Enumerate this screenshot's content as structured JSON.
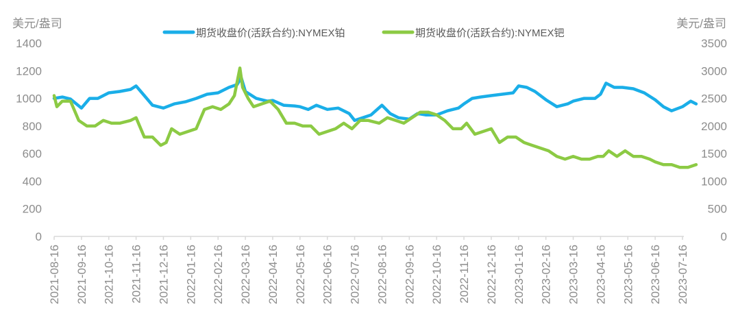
{
  "chart_data": {
    "type": "line",
    "left_unit": "美元/盎司",
    "right_unit": "美元/盎司",
    "left_ylim": [
      0,
      1400
    ],
    "right_ylim": [
      0,
      3500
    ],
    "left_ticks": [
      "0",
      "200",
      "400",
      "600",
      "800",
      "1000",
      "1200",
      "1400"
    ],
    "right_ticks": [
      "0",
      "500",
      "1000",
      "1500",
      "2000",
      "2500",
      "3000",
      "3500"
    ],
    "x_ticks": [
      "2021-08-16",
      "2021-09-16",
      "2021-10-16",
      "2021-11-16",
      "2021-12-16",
      "2022-01-16",
      "2022-02-16",
      "2022-03-16",
      "2022-04-16",
      "2022-05-16",
      "2022-06-16",
      "2022-07-16",
      "2022-08-16",
      "2022-09-16",
      "2022-10-16",
      "2022-11-16",
      "2022-12-16",
      "2023-01-16",
      "2023-02-16",
      "2023-03-16",
      "2023-04-16",
      "2023-05-16",
      "2023-06-16",
      "2023-07-16"
    ],
    "series": [
      {
        "name": "期货收盘价(活跃合约):NYMEX铂",
        "axis": "left",
        "color": "#1aaee8",
        "values": [
          [
            0,
            1000
          ],
          [
            0.3,
            1010
          ],
          [
            0.6,
            995
          ],
          [
            1.0,
            930
          ],
          [
            1.3,
            1000
          ],
          [
            1.6,
            1000
          ],
          [
            2.0,
            1040
          ],
          [
            2.4,
            1050
          ],
          [
            2.8,
            1065
          ],
          [
            3.0,
            1090
          ],
          [
            3.3,
            1020
          ],
          [
            3.6,
            950
          ],
          [
            4.0,
            930
          ],
          [
            4.4,
            960
          ],
          [
            4.8,
            975
          ],
          [
            5.2,
            1000
          ],
          [
            5.6,
            1030
          ],
          [
            6.0,
            1040
          ],
          [
            6.4,
            1080
          ],
          [
            6.7,
            1100
          ],
          [
            6.85,
            1150
          ],
          [
            7.0,
            1050
          ],
          [
            7.4,
            1000
          ],
          [
            7.8,
            980
          ],
          [
            8.0,
            985
          ],
          [
            8.4,
            950
          ],
          [
            8.8,
            945
          ],
          [
            9.0,
            940
          ],
          [
            9.3,
            920
          ],
          [
            9.6,
            950
          ],
          [
            10.0,
            920
          ],
          [
            10.4,
            930
          ],
          [
            10.8,
            890
          ],
          [
            11.0,
            840
          ],
          [
            11.3,
            860
          ],
          [
            11.6,
            880
          ],
          [
            12.0,
            950
          ],
          [
            12.3,
            890
          ],
          [
            12.6,
            860
          ],
          [
            13.0,
            850
          ],
          [
            13.3,
            890
          ],
          [
            13.6,
            880
          ],
          [
            14.0,
            880
          ],
          [
            14.4,
            910
          ],
          [
            14.8,
            930
          ],
          [
            15.0,
            960
          ],
          [
            15.3,
            1000
          ],
          [
            15.6,
            1010
          ],
          [
            16.0,
            1020
          ],
          [
            16.4,
            1030
          ],
          [
            16.8,
            1040
          ],
          [
            17.0,
            1090
          ],
          [
            17.3,
            1080
          ],
          [
            17.6,
            1050
          ],
          [
            18.0,
            990
          ],
          [
            18.4,
            940
          ],
          [
            18.8,
            960
          ],
          [
            19.0,
            980
          ],
          [
            19.4,
            1000
          ],
          [
            19.8,
            1000
          ],
          [
            20.0,
            1030
          ],
          [
            20.2,
            1110
          ],
          [
            20.5,
            1080
          ],
          [
            20.8,
            1080
          ],
          [
            21.2,
            1070
          ],
          [
            21.6,
            1040
          ],
          [
            22.0,
            990
          ],
          [
            22.3,
            940
          ],
          [
            22.6,
            910
          ],
          [
            23.0,
            940
          ],
          [
            23.3,
            980
          ],
          [
            23.5,
            960
          ]
        ]
      },
      {
        "name": "期货收盘价(活跃合约):NYMEX钯",
        "axis": "right",
        "color": "#8cca44",
        "values": [
          [
            0,
            2550
          ],
          [
            0.1,
            2350
          ],
          [
            0.3,
            2450
          ],
          [
            0.6,
            2450
          ],
          [
            0.9,
            2100
          ],
          [
            1.2,
            2000
          ],
          [
            1.5,
            2000
          ],
          [
            1.8,
            2100
          ],
          [
            2.1,
            2050
          ],
          [
            2.4,
            2050
          ],
          [
            2.8,
            2100
          ],
          [
            3.0,
            2150
          ],
          [
            3.3,
            1800
          ],
          [
            3.6,
            1800
          ],
          [
            3.9,
            1650
          ],
          [
            4.1,
            1700
          ],
          [
            4.3,
            1950
          ],
          [
            4.6,
            1850
          ],
          [
            4.9,
            1900
          ],
          [
            5.2,
            1950
          ],
          [
            5.5,
            2300
          ],
          [
            5.8,
            2350
          ],
          [
            6.1,
            2300
          ],
          [
            6.4,
            2400
          ],
          [
            6.6,
            2550
          ],
          [
            6.8,
            3050
          ],
          [
            6.9,
            2700
          ],
          [
            7.1,
            2500
          ],
          [
            7.3,
            2350
          ],
          [
            7.6,
            2400
          ],
          [
            7.9,
            2450
          ],
          [
            8.2,
            2300
          ],
          [
            8.5,
            2050
          ],
          [
            8.8,
            2050
          ],
          [
            9.1,
            2000
          ],
          [
            9.4,
            2000
          ],
          [
            9.7,
            1850
          ],
          [
            10.0,
            1900
          ],
          [
            10.3,
            1950
          ],
          [
            10.6,
            2050
          ],
          [
            10.9,
            1950
          ],
          [
            11.2,
            2100
          ],
          [
            11.5,
            2100
          ],
          [
            11.9,
            2050
          ],
          [
            12.2,
            2150
          ],
          [
            12.5,
            2100
          ],
          [
            12.8,
            2050
          ],
          [
            13.1,
            2150
          ],
          [
            13.4,
            2250
          ],
          [
            13.7,
            2250
          ],
          [
            14.0,
            2200
          ],
          [
            14.3,
            2100
          ],
          [
            14.6,
            1950
          ],
          [
            14.9,
            1950
          ],
          [
            15.1,
            2050
          ],
          [
            15.4,
            1850
          ],
          [
            15.7,
            1900
          ],
          [
            16.0,
            1950
          ],
          [
            16.3,
            1700
          ],
          [
            16.6,
            1800
          ],
          [
            16.9,
            1800
          ],
          [
            17.2,
            1700
          ],
          [
            17.5,
            1650
          ],
          [
            17.8,
            1600
          ],
          [
            18.1,
            1550
          ],
          [
            18.4,
            1450
          ],
          [
            18.7,
            1400
          ],
          [
            19.0,
            1450
          ],
          [
            19.3,
            1400
          ],
          [
            19.6,
            1400
          ],
          [
            19.9,
            1450
          ],
          [
            20.1,
            1450
          ],
          [
            20.3,
            1550
          ],
          [
            20.6,
            1450
          ],
          [
            20.9,
            1550
          ],
          [
            21.2,
            1450
          ],
          [
            21.5,
            1450
          ],
          [
            21.8,
            1400
          ],
          [
            22.0,
            1350
          ],
          [
            22.3,
            1300
          ],
          [
            22.6,
            1300
          ],
          [
            22.9,
            1250
          ],
          [
            23.2,
            1250
          ],
          [
            23.5,
            1300
          ]
        ]
      }
    ]
  }
}
